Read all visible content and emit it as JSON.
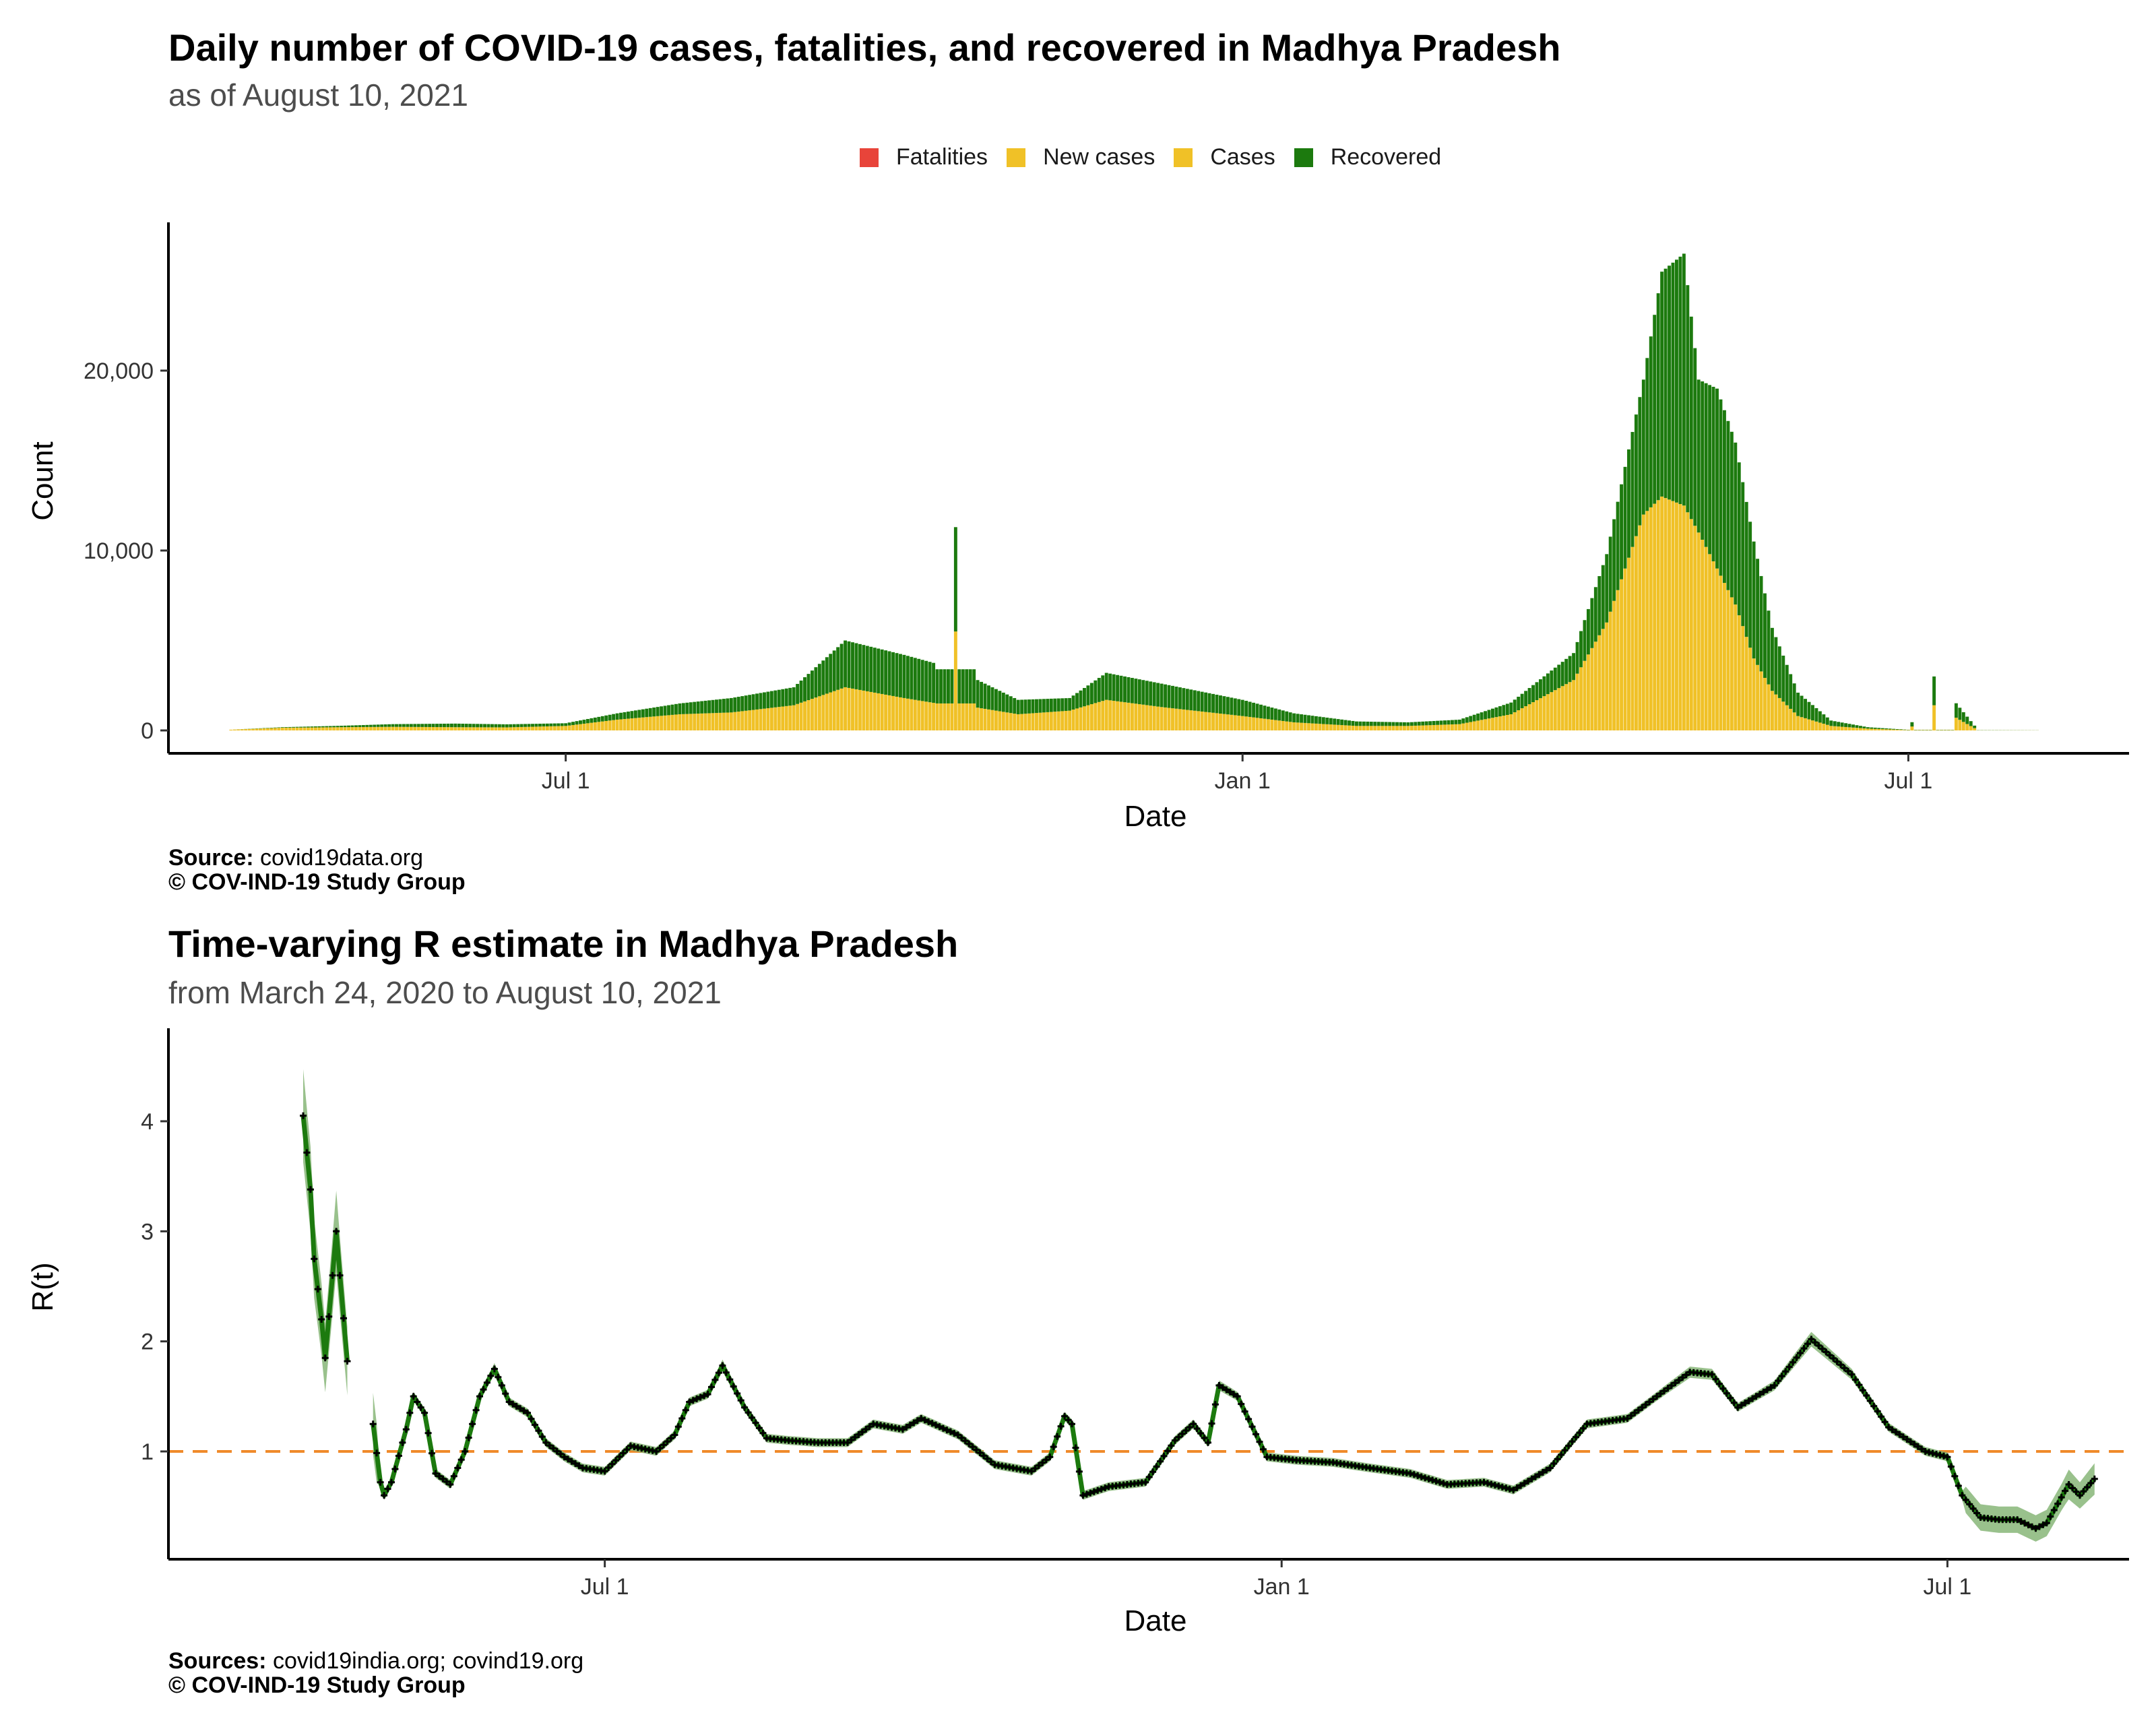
{
  "colors": {
    "fatalities": "#e8443a",
    "new_cases": "#f0c127",
    "cases": "#f0c127",
    "recovered": "#1c7a0e",
    "rt_line": "#1c7a0e",
    "rt_band": "#7fb26f",
    "reference": "#f08a2a"
  },
  "chart_data": [
    {
      "type": "bar",
      "title": "Daily number of COVID-19 cases, fatalities, and recovered in Madhya Pradesh",
      "subtitle": "as of August 10, 2021",
      "xlabel": "Date",
      "ylabel": "Count",
      "legend": [
        "Fatalities",
        "New cases",
        "Cases",
        "Recovered"
      ],
      "legend_position": "top",
      "x_ticks": [
        "Jul 1",
        "Jan 1",
        "Jul 1"
      ],
      "y_ticks": [
        "0",
        "10,000",
        "20,000"
      ],
      "ylim": [
        0,
        27500
      ],
      "xlim": [
        "2020-03-15",
        "2021-08-30"
      ],
      "stacking": "cases (yellow) below, recovered (green) on top",
      "points": [
        {
          "date": "2020-04-01",
          "cases": 40,
          "recovered": 0
        },
        {
          "date": "2020-04-15",
          "cases": 150,
          "recovered": 30
        },
        {
          "date": "2020-05-01",
          "cases": 180,
          "recovered": 80
        },
        {
          "date": "2020-05-15",
          "cases": 200,
          "recovered": 150
        },
        {
          "date": "2020-06-01",
          "cases": 180,
          "recovered": 200
        },
        {
          "date": "2020-06-15",
          "cases": 170,
          "recovered": 170
        },
        {
          "date": "2020-07-01",
          "cases": 250,
          "recovered": 150
        },
        {
          "date": "2020-07-15",
          "cases": 600,
          "recovered": 350
        },
        {
          "date": "2020-08-01",
          "cases": 900,
          "recovered": 600
        },
        {
          "date": "2020-08-15",
          "cases": 1000,
          "recovered": 800
        },
        {
          "date": "2020-09-01",
          "cases": 1400,
          "recovered": 1000
        },
        {
          "date": "2020-09-15",
          "cases": 2400,
          "recovered": 2600
        },
        {
          "date": "2020-10-01",
          "cases": 1800,
          "recovered": 2400
        },
        {
          "date": "2020-10-10",
          "cases": 1500,
          "recovered": 2200
        },
        {
          "date": "2020-10-15",
          "cases": 5500,
          "recovered": 5800
        },
        {
          "date": "2020-10-20",
          "cases": 1300,
          "recovered": 1600
        },
        {
          "date": "2020-11-01",
          "cases": 900,
          "recovered": 800
        },
        {
          "date": "2020-11-15",
          "cases": 1100,
          "recovered": 700
        },
        {
          "date": "2020-11-25",
          "cases": 1700,
          "recovered": 1500
        },
        {
          "date": "2020-12-10",
          "cases": 1300,
          "recovered": 1300
        },
        {
          "date": "2021-01-01",
          "cases": 800,
          "recovered": 900
        },
        {
          "date": "2021-01-15",
          "cases": 450,
          "recovered": 500
        },
        {
          "date": "2021-02-01",
          "cases": 250,
          "recovered": 250
        },
        {
          "date": "2021-02-15",
          "cases": 250,
          "recovered": 200
        },
        {
          "date": "2021-03-01",
          "cases": 350,
          "recovered": 250
        },
        {
          "date": "2021-03-15",
          "cases": 900,
          "recovered": 650
        },
        {
          "date": "2021-04-01",
          "cases": 2800,
          "recovered": 1500
        },
        {
          "date": "2021-04-10",
          "cases": 6000,
          "recovered": 3800
        },
        {
          "date": "2021-04-20",
          "cases": 12000,
          "recovered": 7500
        },
        {
          "date": "2021-04-25",
          "cases": 13000,
          "recovered": 12500
        },
        {
          "date": "2021-05-01",
          "cases": 12500,
          "recovered": 14000
        },
        {
          "date": "2021-05-05",
          "cases": 11000,
          "recovered": 8500
        },
        {
          "date": "2021-05-10",
          "cases": 9000,
          "recovered": 10000
        },
        {
          "date": "2021-05-15",
          "cases": 7000,
          "recovered": 9000
        },
        {
          "date": "2021-05-20",
          "cases": 4000,
          "recovered": 6500
        },
        {
          "date": "2021-05-25",
          "cases": 2200,
          "recovered": 3500
        },
        {
          "date": "2021-06-01",
          "cases": 800,
          "recovered": 1300
        },
        {
          "date": "2021-06-10",
          "cases": 250,
          "recovered": 300
        },
        {
          "date": "2021-06-20",
          "cases": 100,
          "recovered": 80
        },
        {
          "date": "2021-07-01",
          "cases": 20,
          "recovered": 15
        },
        {
          "date": "2021-07-08",
          "cases": 1400,
          "recovered": 1600
        },
        {
          "date": "2021-07-20",
          "cases": 10,
          "recovered": 10
        },
        {
          "date": "2021-08-05",
          "cases": 5,
          "recovered": 5
        }
      ]
    },
    {
      "type": "line",
      "title": "Time-varying R estimate in Madhya Pradesh",
      "subtitle": "from March 24, 2020 to August 10, 2021",
      "xlabel": "Date",
      "ylabel": "R(t)",
      "x_ticks": [
        "Jul 1",
        "Jan 1",
        "Jul 1"
      ],
      "y_ticks": [
        "1",
        "2",
        "3",
        "4"
      ],
      "ylim": [
        0.0,
        4.85
      ],
      "xlim": [
        "2020-03-15",
        "2021-08-30"
      ],
      "reference_line": 1,
      "series": [
        {
          "x": [
            "2020-04-10",
            "2020-04-12",
            "2020-04-13",
            "2020-04-15",
            "2020-04-16",
            "2020-04-18",
            "2020-04-19",
            "2020-04-20",
            "2020-04-22",
            "2020-04-29",
            "2020-05-01",
            "2020-05-02",
            "2020-05-04",
            "2020-05-08",
            "2020-05-10",
            "2020-05-13",
            "2020-05-16",
            "2020-05-20",
            "2020-05-24",
            "2020-05-28",
            "2020-06-01",
            "2020-06-05",
            "2020-06-10",
            "2020-06-15",
            "2020-06-20",
            "2020-06-25",
            "2020-07-01",
            "2020-07-08",
            "2020-07-15",
            "2020-07-20",
            "2020-07-24",
            "2020-07-29",
            "2020-08-02",
            "2020-08-08",
            "2020-08-14",
            "2020-08-20",
            "2020-08-28",
            "2020-09-05",
            "2020-09-12",
            "2020-09-20",
            "2020-09-25",
            "2020-10-05",
            "2020-10-15",
            "2020-10-25",
            "2020-10-30",
            "2020-11-03",
            "2020-11-05",
            "2020-11-08",
            "2020-11-15",
            "2020-11-25",
            "2020-12-03",
            "2020-12-08",
            "2020-12-12",
            "2020-12-15",
            "2020-12-20",
            "2020-12-28",
            "2021-01-05",
            "2021-01-15",
            "2021-01-25",
            "2021-02-05",
            "2021-02-15",
            "2021-02-25",
            "2021-03-05",
            "2021-03-15",
            "2021-03-25",
            "2021-04-05",
            "2021-04-15",
            "2021-04-22",
            "2021-04-28",
            "2021-05-05",
            "2021-05-15",
            "2021-05-25",
            "2021-06-05",
            "2021-06-15",
            "2021-06-25",
            "2021-07-01",
            "2021-07-05",
            "2021-07-10",
            "2021-07-15",
            "2021-07-20",
            "2021-07-25",
            "2021-07-28",
            "2021-08-03",
            "2021-08-06",
            "2021-08-10"
          ],
          "y": [
            4.05,
            3.38,
            2.75,
            2.2,
            1.85,
            2.6,
            3.0,
            2.6,
            1.82,
            1.25,
            0.72,
            0.6,
            0.72,
            1.2,
            1.5,
            1.35,
            0.8,
            0.7,
            1.0,
            1.5,
            1.75,
            1.45,
            1.35,
            1.08,
            0.95,
            0.85,
            0.82,
            1.05,
            1.0,
            1.15,
            1.45,
            1.52,
            1.78,
            1.4,
            1.12,
            1.1,
            1.08,
            1.08,
            1.25,
            1.2,
            1.3,
            1.15,
            0.88,
            0.82,
            0.95,
            1.32,
            1.25,
            0.6,
            0.68,
            0.72,
            1.1,
            1.25,
            1.08,
            1.6,
            1.5,
            0.95,
            0.92,
            0.9,
            0.85,
            0.8,
            0.7,
            0.72,
            0.65,
            0.85,
            1.25,
            1.3,
            1.55,
            1.72,
            1.7,
            1.4,
            1.6,
            2.02,
            1.7,
            1.22,
            1.0,
            0.95,
            0.6,
            0.4,
            0.38,
            0.38,
            0.3,
            0.35,
            0.7,
            0.6,
            0.75
          ]
        }
      ]
    }
  ],
  "panel1": {
    "title": "Daily number of COVID-19 cases, fatalities, and recovered in Madhya Pradesh",
    "subtitle": "as of August 10, 2021",
    "legend": {
      "fatalities": "Fatalities",
      "new_cases": "New cases",
      "cases": "Cases",
      "recovered": "Recovered"
    },
    "source_label": "Source:",
    "source_text": " covid19data.org",
    "copyright": "© COV-IND-19 Study Group"
  },
  "panel2": {
    "title": "Time-varying R estimate in Madhya Pradesh",
    "subtitle": "from March 24, 2020 to August 10, 2021",
    "source_label": "Sources:",
    "source_text": " covid19india.org; covind19.org",
    "copyright": "© COV-IND-19 Study Group"
  }
}
